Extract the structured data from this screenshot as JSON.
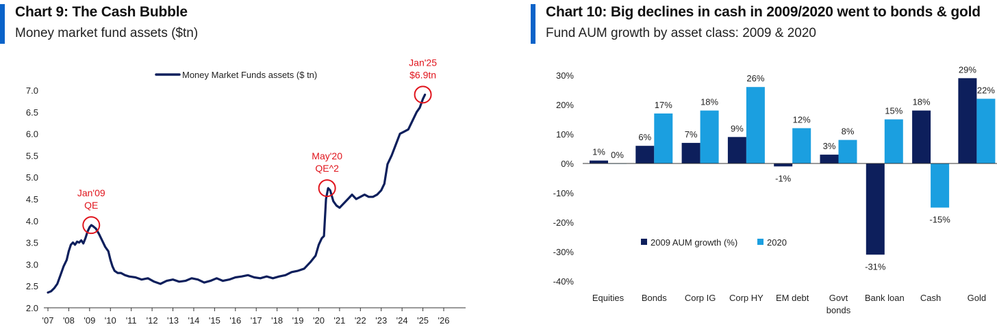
{
  "colors": {
    "accent_bar": "#0a63c9",
    "line": "#0d1f5c",
    "highlight": "#e0141c",
    "series_2009": "#0d1f5c",
    "series_2020": "#1b9fe0"
  },
  "left": {
    "title": "Chart 9: The Cash Bubble",
    "subtitle": "Money market fund assets ($tn)"
  },
  "right": {
    "title": "Chart 10: Big declines in cash in 2009/2020 went to bonds & gold",
    "subtitle": "Fund AUM growth by asset class: 2009 & 2020"
  },
  "chart_data": [
    {
      "type": "line",
      "title": "Chart 9: The Cash Bubble",
      "subtitle": "Money market fund assets ($tn)",
      "legend": {
        "label": "Money Market Funds assets ($ tn)",
        "placement": "top-center"
      },
      "x_ticks": [
        "'07",
        "'08",
        "'09",
        "'10",
        "'11",
        "'12",
        "'13",
        "'14",
        "'15",
        "'16",
        "'17",
        "'18",
        "'19",
        "'20",
        "'21",
        "'22",
        "'23",
        "'24",
        "'25",
        "'26"
      ],
      "y_ticks": [
        "2.0",
        "2.5",
        "3.0",
        "3.5",
        "4.0",
        "4.5",
        "5.0",
        "5.5",
        "6.0",
        "6.5",
        "7.0"
      ],
      "xlim": [
        2007,
        2026
      ],
      "ylim": [
        2.0,
        7.0
      ],
      "series": [
        {
          "name": "Money Market Funds assets ($ tn)",
          "x": [
            2007.0,
            2007.15,
            2007.3,
            2007.45,
            2007.6,
            2007.75,
            2007.9,
            2008.0,
            2008.1,
            2008.2,
            2008.3,
            2008.4,
            2008.5,
            2008.6,
            2008.7,
            2008.8,
            2008.9,
            2009.0,
            2009.08,
            2009.15,
            2009.3,
            2009.45,
            2009.6,
            2009.75,
            2009.9,
            2010.0,
            2010.1,
            2010.2,
            2010.35,
            2010.5,
            2010.7,
            2010.9,
            2011.2,
            2011.5,
            2011.8,
            2012.1,
            2012.4,
            2012.7,
            2013.0,
            2013.3,
            2013.6,
            2013.9,
            2014.2,
            2014.5,
            2014.8,
            2015.1,
            2015.4,
            2015.7,
            2016.0,
            2016.3,
            2016.6,
            2016.9,
            2017.2,
            2017.5,
            2017.8,
            2018.1,
            2018.4,
            2018.7,
            2019.0,
            2019.3,
            2019.6,
            2019.85,
            2020.0,
            2020.15,
            2020.25,
            2020.35,
            2020.45,
            2020.55,
            2020.7,
            2020.85,
            2021.0,
            2021.2,
            2021.4,
            2021.6,
            2021.8,
            2022.0,
            2022.2,
            2022.4,
            2022.6,
            2022.8,
            2023.0,
            2023.15,
            2023.3,
            2023.5,
            2023.7,
            2023.9,
            2024.1,
            2024.3,
            2024.5,
            2024.7,
            2024.85,
            2025.0,
            2025.1
          ],
          "values": [
            2.35,
            2.38,
            2.45,
            2.55,
            2.75,
            2.95,
            3.1,
            3.3,
            3.45,
            3.5,
            3.45,
            3.52,
            3.5,
            3.55,
            3.48,
            3.6,
            3.75,
            3.85,
            3.9,
            3.88,
            3.82,
            3.7,
            3.55,
            3.4,
            3.3,
            3.1,
            2.95,
            2.85,
            2.8,
            2.8,
            2.75,
            2.72,
            2.7,
            2.65,
            2.68,
            2.6,
            2.55,
            2.62,
            2.65,
            2.6,
            2.62,
            2.68,
            2.65,
            2.58,
            2.62,
            2.68,
            2.62,
            2.65,
            2.7,
            2.72,
            2.75,
            2.7,
            2.68,
            2.72,
            2.68,
            2.72,
            2.75,
            2.82,
            2.85,
            2.9,
            3.05,
            3.2,
            3.45,
            3.6,
            3.65,
            4.5,
            4.75,
            4.7,
            4.45,
            4.35,
            4.3,
            4.4,
            4.5,
            4.6,
            4.5,
            4.55,
            4.6,
            4.55,
            4.55,
            4.6,
            4.7,
            4.85,
            5.3,
            5.5,
            5.75,
            6.0,
            6.05,
            6.1,
            6.3,
            6.5,
            6.6,
            6.8,
            6.9
          ]
        }
      ],
      "annotations": [
        {
          "lines": [
            "Jan'09",
            "QE"
          ],
          "x": 2009.08,
          "y": 3.9
        },
        {
          "lines": [
            "May'20",
            "QE^2"
          ],
          "x": 2020.4,
          "y": 4.75
        },
        {
          "lines": [
            "Jan'25",
            "$6.9tn"
          ],
          "x": 2025.0,
          "y": 6.9
        }
      ]
    },
    {
      "type": "bar",
      "title": "Chart 10: Big declines in cash in 2009/2020 went to bonds & gold",
      "subtitle": "Fund AUM growth by asset class: 2009 & 2020",
      "categories": [
        [
          "Equities"
        ],
        [
          "Bonds"
        ],
        [
          "Corp IG"
        ],
        [
          "Corp HY"
        ],
        [
          "EM debt"
        ],
        [
          "Govt",
          "bonds"
        ],
        [
          "Bank loan"
        ],
        [
          "Cash"
        ],
        [
          "Gold"
        ]
      ],
      "y_ticks": [
        "30%",
        "20%",
        "10%",
        "0%",
        "-10%",
        "-20%",
        "-30%",
        "-40%"
      ],
      "ylim": [
        -40,
        30
      ],
      "legend_placement": "lower-left",
      "series": [
        {
          "name": "2009 AUM growth (%)",
          "values": [
            1,
            6,
            7,
            9,
            -1,
            3,
            -31,
            18,
            29
          ],
          "labels": [
            "1%",
            "6%",
            "7%",
            "9%",
            "-1%",
            "3%",
            "-31%",
            "18%",
            "29%"
          ]
        },
        {
          "name": "2020",
          "values": [
            0,
            17,
            18,
            26,
            12,
            8,
            15,
            -15,
            22
          ],
          "labels": [
            "0%",
            "17%",
            "18%",
            "26%",
            "12%",
            "8%",
            "15%",
            "-15%",
            "22%"
          ]
        }
      ]
    }
  ]
}
